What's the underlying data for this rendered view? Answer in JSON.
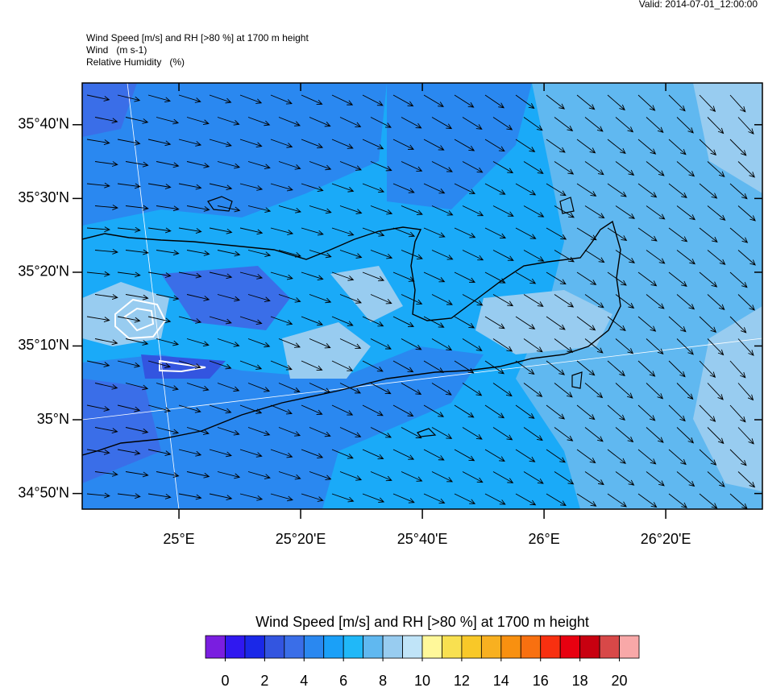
{
  "header": {
    "valid": "Valid: 2014-07-01_12:00:00",
    "title": "Wind Speed [m/s] and RH [>80 %] at 1700 m height",
    "line2": "Wind   (m s-1)",
    "line3": "Relative Humidity   (%)"
  },
  "map": {
    "lonlim": [
      24.735,
      26.598
    ],
    "latlim": [
      34.798,
      35.761
    ],
    "lat_ticks": [
      {
        "value": 35.6667,
        "label": "35°40'N"
      },
      {
        "value": 35.5,
        "label": "35°30'N"
      },
      {
        "value": 35.3333,
        "label": "35°20'N"
      },
      {
        "value": 35.1667,
        "label": "35°10'N"
      },
      {
        "value": 35,
        "label": "35°N"
      },
      {
        "value": 34.8333,
        "label": "34°50'N"
      }
    ],
    "lon_ticks": [
      {
        "value": 25,
        "label": "25°E"
      },
      {
        "value": 25.3333,
        "label": "25°20'E"
      },
      {
        "value": 25.6667,
        "label": "25°40'E"
      },
      {
        "value": 26,
        "label": "26°E"
      },
      {
        "value": 26.3333,
        "label": "26°20'E"
      }
    ]
  },
  "colorbar": {
    "title": "Wind Speed [m/s] and RH [>80 %] at 1700 m height",
    "lim": [
      -1,
      21
    ],
    "ticks": [
      0,
      2,
      4,
      6,
      8,
      10,
      12,
      14,
      16,
      18,
      20
    ],
    "colors": [
      "#7a1ee0",
      "#3018f0",
      "#1a28e8",
      "#3355e0",
      "#3a6ee8",
      "#2a88f0",
      "#1aa0f8",
      "#20b8f8",
      "#60b8f0",
      "#98ccf0",
      "#c0e4f8",
      "#fff89a",
      "#f8e050",
      "#f8c828",
      "#f8b020",
      "#f89010",
      "#f87010",
      "#f83010",
      "#e80010",
      "#c80010",
      "#d84848",
      "#f8a8a8"
    ]
  }
}
